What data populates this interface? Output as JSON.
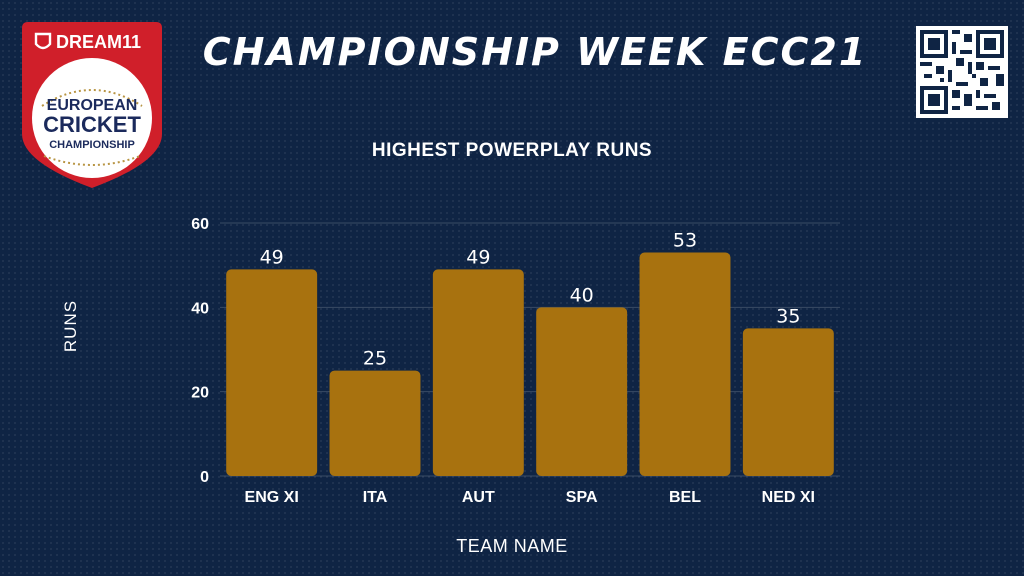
{
  "header": {
    "title": "CHAMPIONSHIP WEEK ECC21",
    "logo": {
      "brand": "DREAM11",
      "line1": "EUROPEAN",
      "line2": "CRICKET",
      "line3": "CHAMPIONSHIP"
    }
  },
  "colors": {
    "background": "#0f2444",
    "bar": "#a8720f",
    "logo_red": "#d01f2a",
    "logo_navy": "#1b2a5c",
    "logo_gold": "#b89544"
  },
  "chart_data": {
    "type": "bar",
    "title": "HIGHEST POWERPLAY RUNS",
    "xlabel": "TEAM NAME",
    "ylabel": "RUNS",
    "categories": [
      "ENG XI",
      "ITA",
      "AUT",
      "SPA",
      "BEL",
      "NED XI"
    ],
    "values": [
      49,
      25,
      49,
      40,
      53,
      35
    ],
    "ylim": [
      0,
      60
    ],
    "yticks": [
      0,
      20,
      40,
      60
    ],
    "grid": true,
    "data_labels": true,
    "legend": false
  }
}
